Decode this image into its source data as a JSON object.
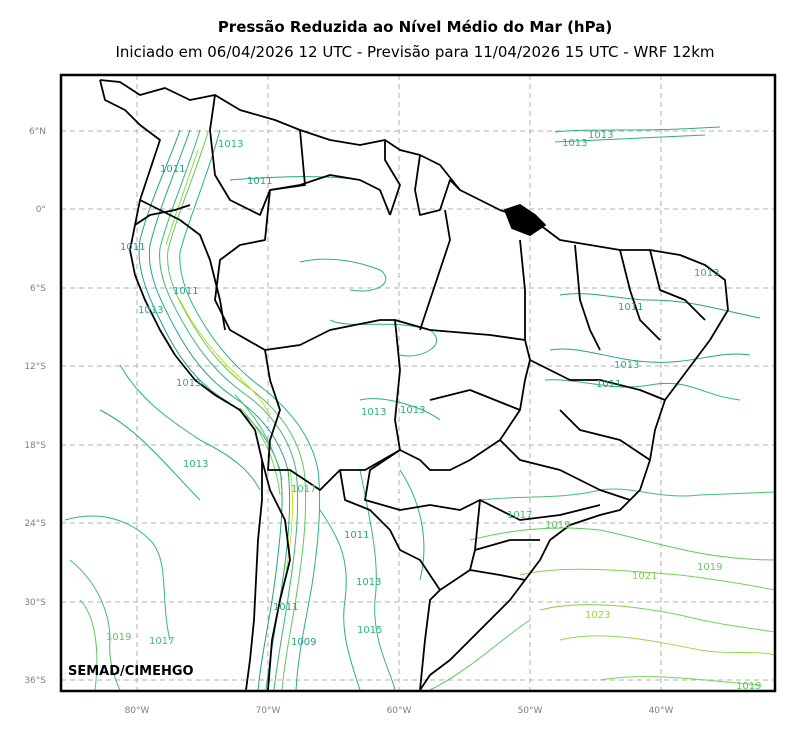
{
  "title": "Pressão Reduzida ao Nível Médio do Mar (hPa)",
  "subtitle": "Iniciado em 06/04/2026 12 UTC - Previsão para 11/04/2026 15 UTC - WRF 12km",
  "credit": "SEMAD/CIMEHGO",
  "lon_ticks": [
    "80°W",
    "70°W",
    "60°W",
    "50°W",
    "40°W"
  ],
  "lat_ticks": [
    "6°N",
    "0°",
    "6°S",
    "12°S",
    "18°S",
    "24°S",
    "30°S",
    "36°S"
  ],
  "contour_labels": [
    {
      "text": "1013",
      "color": "#2bb07f"
    },
    {
      "text": "1013",
      "color": "#2bb07f"
    },
    {
      "text": "1013",
      "color": "#2bb07f"
    },
    {
      "text": "1011",
      "color": "#21a685"
    },
    {
      "text": "1011",
      "color": "#21a685"
    },
    {
      "text": "1011",
      "color": "#21a685"
    },
    {
      "text": "1011",
      "color": "#21a685"
    },
    {
      "text": "1013",
      "color": "#2bb07f"
    },
    {
      "text": "1011",
      "color": "#21a685"
    },
    {
      "text": "1013",
      "color": "#2bb07f"
    },
    {
      "text": "1013",
      "color": "#2bb07f"
    },
    {
      "text": "1013",
      "color": "#2bb07f"
    },
    {
      "text": "1013",
      "color": "#2bb07f"
    },
    {
      "text": "1011",
      "color": "#21a685"
    },
    {
      "text": "1013",
      "color": "#2bb07f"
    },
    {
      "text": "1015",
      "color": "#35b779"
    },
    {
      "text": "1017",
      "color": "#44bf70"
    },
    {
      "text": "1019",
      "color": "#5ec962"
    },
    {
      "text": "1021",
      "color": "#7ad151"
    },
    {
      "text": "1019",
      "color": "#5ec962"
    },
    {
      "text": "1023",
      "color": "#95d840"
    },
    {
      "text": "1019",
      "color": "#5ec962"
    },
    {
      "text": "1017",
      "color": "#44bf70"
    },
    {
      "text": "1019",
      "color": "#5ec962"
    },
    {
      "text": "1009",
      "color": "#1f9e89"
    },
    {
      "text": "1011",
      "color": "#21a685"
    },
    {
      "text": "1017",
      "color": "#44bf70"
    },
    {
      "text": "1013",
      "color": "#2bb07f"
    },
    {
      "text": "1011",
      "color": "#21a685"
    },
    {
      "text": "1013",
      "color": "#2bb07f"
    }
  ],
  "colors": {
    "frame": "#000000",
    "grid": "#b0b0b0",
    "border": "#000000",
    "low": "#1f9e89",
    "mid": "#35b779",
    "high": "#95d840",
    "andes": "#c8e020"
  }
}
